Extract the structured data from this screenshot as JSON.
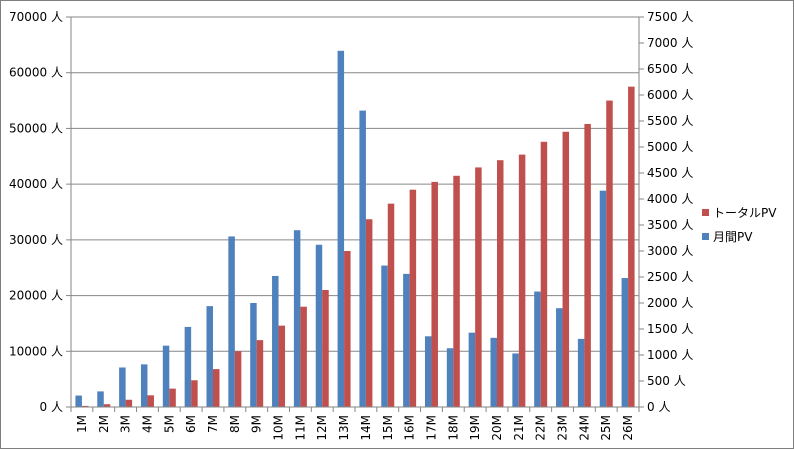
{
  "chart_data": {
    "type": "bar",
    "unit_suffix": " 人",
    "categories": [
      "1M",
      "2M",
      "3M",
      "4M",
      "5M",
      "6M",
      "7M",
      "8M",
      "9M",
      "10M",
      "11M",
      "12M",
      "13M",
      "14M",
      "15M",
      "16M",
      "17M",
      "18M",
      "19M",
      "20M",
      "21M",
      "22M",
      "23M",
      "24M",
      "25M",
      "26M"
    ],
    "series": [
      {
        "name": "月間PV",
        "axis": "right",
        "color": "#4f81bd",
        "values": [
          220,
          300,
          760,
          820,
          1180,
          1540,
          1940,
          3280,
          2000,
          2520,
          3400,
          3120,
          6850,
          5700,
          2720,
          2560,
          1360,
          1130,
          1430,
          1330,
          1030,
          2220,
          1900,
          1310,
          4160,
          2480
        ]
      },
      {
        "name": "トータルPV",
        "axis": "left",
        "color": "#c0504d",
        "values": [
          200,
          500,
          1300,
          2100,
          3300,
          4800,
          6800,
          10000,
          12000,
          14600,
          18000,
          21000,
          28000,
          33700,
          36500,
          39000,
          40400,
          41500,
          43000,
          44300,
          45300,
          47600,
          49400,
          50800,
          55000,
          57500
        ]
      }
    ],
    "y_left": {
      "ticks": [
        0,
        10000,
        20000,
        30000,
        40000,
        50000,
        60000,
        70000
      ],
      "ylim": [
        0,
        70000
      ]
    },
    "y_right": {
      "ticks": [
        0,
        500,
        1000,
        1500,
        2000,
        2500,
        3000,
        3500,
        4000,
        4500,
        5000,
        5500,
        6000,
        6500,
        7000,
        7500
      ],
      "ylim": [
        0,
        7500
      ]
    },
    "grid": true,
    "legend_position": "right",
    "legend_order": [
      "トータルPV",
      "月間PV"
    ],
    "title": "",
    "xlabel": "",
    "ylabel": ""
  }
}
